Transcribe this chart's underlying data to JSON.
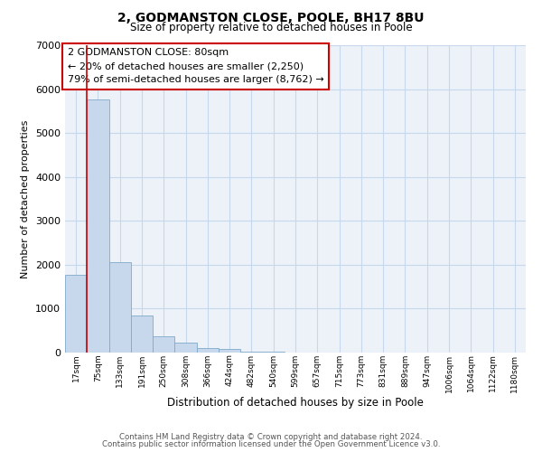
{
  "title": "2, GODMANSTON CLOSE, POOLE, BH17 8BU",
  "subtitle": "Size of property relative to detached houses in Poole",
  "xlabel": "Distribution of detached houses by size in Poole",
  "ylabel": "Number of detached properties",
  "bar_labels": [
    "17sqm",
    "75sqm",
    "133sqm",
    "191sqm",
    "250sqm",
    "308sqm",
    "366sqm",
    "424sqm",
    "482sqm",
    "540sqm",
    "599sqm",
    "657sqm",
    "715sqm",
    "773sqm",
    "831sqm",
    "889sqm",
    "947sqm",
    "1006sqm",
    "1064sqm",
    "1122sqm",
    "1180sqm"
  ],
  "bar_values": [
    1780,
    5770,
    2060,
    840,
    370,
    230,
    105,
    75,
    30,
    15,
    10,
    0,
    0,
    0,
    0,
    0,
    0,
    0,
    0,
    0,
    0
  ],
  "bar_color": "#c8d8ec",
  "bar_edge_color": "#7eaacb",
  "vline_x": 0.5,
  "vline_color": "#cc0000",
  "ylim": [
    0,
    7000
  ],
  "yticks": [
    0,
    1000,
    2000,
    3000,
    4000,
    5000,
    6000,
    7000
  ],
  "annotation_title": "2 GODMANSTON CLOSE: 80sqm",
  "annotation_line1": "← 20% of detached houses are smaller (2,250)",
  "annotation_line2": "79% of semi-detached houses are larger (8,762) →",
  "footer_line1": "Contains HM Land Registry data © Crown copyright and database right 2024.",
  "footer_line2": "Contains public sector information licensed under the Open Government Licence v3.0.",
  "grid_color": "#c8d8ec",
  "bg_color": "#edf2f9"
}
